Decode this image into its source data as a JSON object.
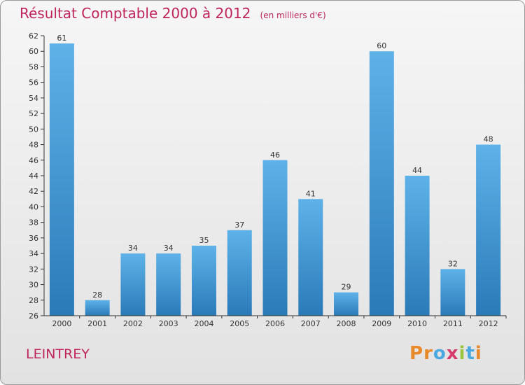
{
  "chart_data": {
    "type": "bar",
    "title": "Résultat Comptable 2000 à 2012",
    "subtitle": "(en milliers d'€)",
    "categories": [
      "2000",
      "2001",
      "2002",
      "2003",
      "2004",
      "2005",
      "2006",
      "2007",
      "2008",
      "2009",
      "2010",
      "2011",
      "2012"
    ],
    "values": [
      61,
      28,
      34,
      34,
      35,
      37,
      46,
      41,
      29,
      60,
      44,
      32,
      48
    ],
    "ylim": [
      26,
      62
    ],
    "ytick_step": 2,
    "grid": false,
    "xlabel": "",
    "ylabel": ""
  },
  "commune": "LEINTREY",
  "logo": {
    "text": "Proxiti"
  },
  "colors": {
    "title": "#c0245c",
    "bar_light": "#5eb2e8",
    "bar_dark": "#2a7ab8",
    "axis": "#333333",
    "logo_letters": [
      "#e8892a",
      "#e8892a",
      "#4aa8e0",
      "#d63a6a",
      "#9bc53d",
      "#4aa8e0",
      "#e8892a"
    ]
  }
}
